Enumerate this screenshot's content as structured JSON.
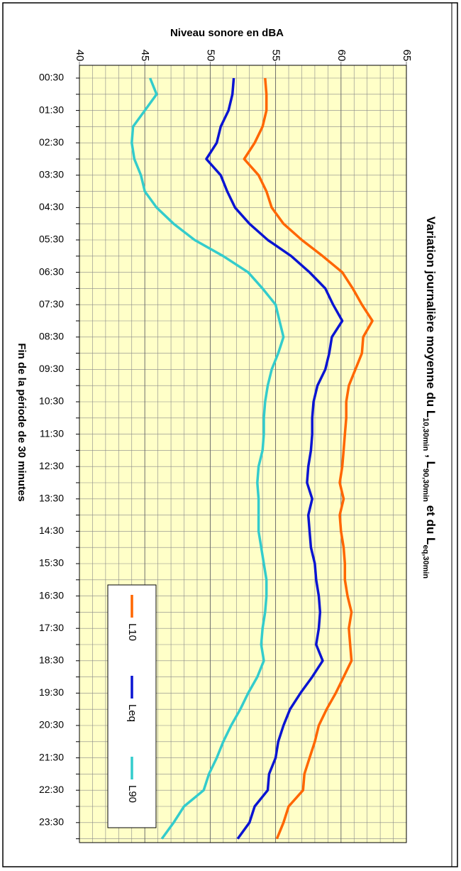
{
  "chart_data": {
    "type": "line",
    "title": [
      "Variation journalière moyenne du L",
      "10,30min",
      " , L",
      "90,30min",
      "  et du L",
      "eq,30min"
    ],
    "value_axis_label": "Niveau sonore   en dBA",
    "category_axis_label": "Fin de la période de 30 minutes",
    "categories": [
      "00:30",
      null,
      "01:30",
      null,
      "02:30",
      null,
      "03:30",
      null,
      "04:30",
      null,
      "05:30",
      null,
      "06:30",
      null,
      "07:30",
      null,
      "08:30",
      null,
      "09:30",
      null,
      "10:30",
      null,
      "11:30",
      null,
      "12:30",
      null,
      "13:30",
      null,
      "14:30",
      null,
      "15:30",
      null,
      "16:30",
      null,
      "17:30",
      null,
      "18:30",
      null,
      "19:30",
      null,
      "20:30",
      null,
      "21:30",
      null,
      "22:30",
      null,
      "23:30",
      null
    ],
    "ylim": [
      40,
      65
    ],
    "yticks": [
      40,
      45,
      50,
      55,
      60,
      65
    ],
    "grid": true,
    "background": "#ffffc8",
    "series": [
      {
        "name": "L10",
        "color": "#ff6600",
        "values": [
          54.2,
          54.3,
          54.3,
          54.0,
          53.4,
          52.6,
          53.7,
          54.3,
          54.7,
          55.6,
          57.0,
          58.6,
          60.1,
          60.9,
          61.6,
          62.4,
          61.7,
          61.6,
          61.1,
          60.6,
          60.4,
          60.4,
          60.3,
          60.2,
          60.1,
          59.9,
          60.2,
          59.9,
          60.0,
          60.2,
          60.3,
          60.3,
          60.5,
          60.8,
          60.6,
          60.7,
          60.8,
          60.2,
          59.6,
          58.9,
          58.3,
          58.0,
          57.6,
          57.2,
          57.1,
          56.0,
          55.6,
          55.1
        ]
      },
      {
        "name": "Leq",
        "color": "#0a14d2",
        "values": [
          51.8,
          51.7,
          51.4,
          50.8,
          50.5,
          49.7,
          50.8,
          51.3,
          51.9,
          53.0,
          54.4,
          56.2,
          57.6,
          58.8,
          59.4,
          60.1,
          59.3,
          59.1,
          58.8,
          58.2,
          57.9,
          57.8,
          57.8,
          57.7,
          57.5,
          57.4,
          57.8,
          57.5,
          57.6,
          57.7,
          58.0,
          58.1,
          58.3,
          58.4,
          58.3,
          58.1,
          58.6,
          57.8,
          56.9,
          56.1,
          55.6,
          55.2,
          55.0,
          54.5,
          54.4,
          53.4,
          53.0,
          52.1
        ]
      },
      {
        "name": "L90",
        "color": "#33cccc",
        "values": [
          45.4,
          45.9,
          45.0,
          44.1,
          44.0,
          44.2,
          44.7,
          45.0,
          45.9,
          47.2,
          48.8,
          51.0,
          52.9,
          54.0,
          55.0,
          55.3,
          55.6,
          55.2,
          54.7,
          54.4,
          54.2,
          54.1,
          54.1,
          54.0,
          53.7,
          53.6,
          53.7,
          53.7,
          53.7,
          53.9,
          54.1,
          54.3,
          54.3,
          54.2,
          54.0,
          53.9,
          54.1,
          53.6,
          52.9,
          52.3,
          51.6,
          51.0,
          50.5,
          49.9,
          49.5,
          48.0,
          47.2,
          46.3
        ]
      }
    ]
  }
}
